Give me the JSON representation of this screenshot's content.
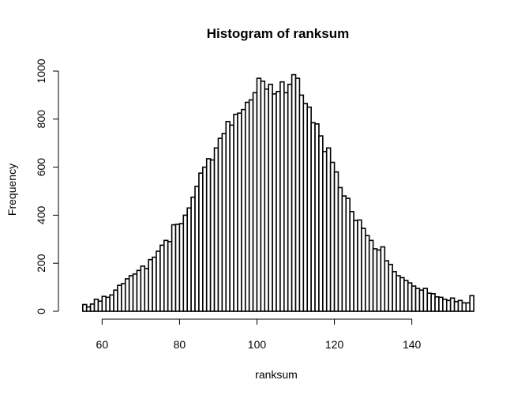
{
  "chart_data": {
    "type": "bar",
    "title": "Histogram of ranksum",
    "xlabel": "ranksum",
    "ylabel": "Frequency",
    "xlim": [
      53,
      157
    ],
    "ylim": [
      0,
      1000
    ],
    "xticks": [
      60,
      80,
      100,
      120,
      140
    ],
    "yticks": [
      0,
      200,
      400,
      600,
      800,
      1000
    ],
    "bin_start": 55,
    "bin_width": 1,
    "values": [
      28,
      18,
      30,
      50,
      42,
      62,
      58,
      68,
      88,
      108,
      115,
      135,
      148,
      155,
      170,
      188,
      178,
      215,
      225,
      250,
      275,
      295,
      290,
      360,
      362,
      365,
      400,
      430,
      475,
      520,
      575,
      600,
      635,
      630,
      680,
      720,
      740,
      790,
      775,
      820,
      825,
      840,
      870,
      880,
      910,
      970,
      958,
      925,
      945,
      905,
      915,
      955,
      910,
      945,
      985,
      970,
      900,
      865,
      850,
      785,
      780,
      730,
      665,
      680,
      620,
      580,
      515,
      480,
      470,
      415,
      378,
      380,
      345,
      315,
      295,
      260,
      255,
      268,
      210,
      195,
      165,
      148,
      140,
      128,
      118,
      105,
      95,
      88,
      95,
      75,
      73,
      60,
      58,
      50,
      45,
      55,
      40,
      45,
      35,
      35,
      65
    ]
  }
}
